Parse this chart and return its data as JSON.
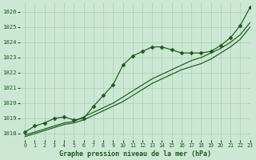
{
  "bg_color": "#cce8d4",
  "grid_color": "#aacfb8",
  "line_color": "#1a5c1a",
  "marker_color": "#1a5c1a",
  "text_color": "#1a5c1a",
  "xlabel": "Graphe pression niveau de la mer (hPa)",
  "ylim": [
    1017.6,
    1026.6
  ],
  "xlim": [
    -0.5,
    23
  ],
  "yticks": [
    1018,
    1019,
    1020,
    1021,
    1022,
    1023,
    1024,
    1025,
    1026
  ],
  "xticks": [
    0,
    1,
    2,
    3,
    4,
    5,
    6,
    7,
    8,
    9,
    10,
    11,
    12,
    13,
    14,
    15,
    16,
    17,
    18,
    19,
    20,
    21,
    22,
    23
  ],
  "series": [
    {
      "y": [
        1018.1,
        1018.5,
        1018.7,
        1019.0,
        1019.1,
        1018.9,
        1019.0,
        1019.8,
        1020.5,
        1021.2,
        1022.5,
        1023.1,
        1023.4,
        1023.7,
        1023.7,
        1023.5,
        1023.3,
        1023.3,
        1023.3,
        1023.4,
        1023.8,
        1024.3,
        1025.1,
        1026.3
      ],
      "marker": true
    },
    {
      "y": [
        1017.9,
        1018.1,
        1018.3,
        1018.5,
        1018.7,
        1018.8,
        1019.1,
        1019.4,
        1019.7,
        1020.0,
        1020.4,
        1020.8,
        1021.2,
        1021.6,
        1021.9,
        1022.2,
        1022.5,
        1022.8,
        1023.0,
        1023.3,
        1023.6,
        1024.0,
        1024.5,
        1025.3
      ],
      "marker": false
    },
    {
      "y": [
        1017.8,
        1018.0,
        1018.2,
        1018.4,
        1018.6,
        1018.7,
        1018.9,
        1019.2,
        1019.5,
        1019.8,
        1020.1,
        1020.5,
        1020.9,
        1021.3,
        1021.6,
        1021.9,
        1022.2,
        1022.4,
        1022.6,
        1022.9,
        1023.3,
        1023.7,
        1024.2,
        1025.0
      ],
      "marker": false
    }
  ],
  "marker_style": "D",
  "marker_size": 2.5,
  "linewidth": 0.85
}
